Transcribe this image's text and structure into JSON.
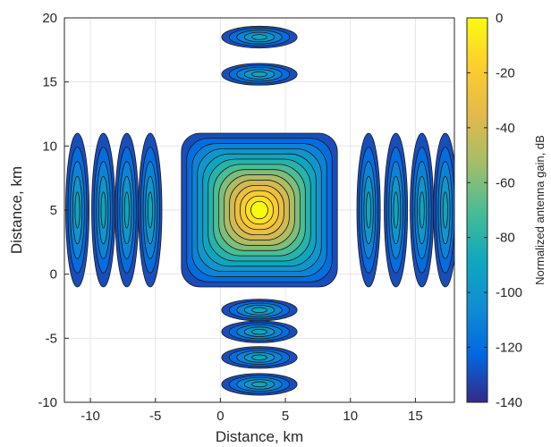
{
  "chart_data": {
    "type": "contour",
    "title": "",
    "xlabel": "Distance, km",
    "ylabel": "Distance, km",
    "xlim": [
      -12,
      18
    ],
    "ylim": [
      -10,
      20
    ],
    "xticks": [
      -10,
      -5,
      0,
      5,
      10,
      15
    ],
    "yticks": [
      -10,
      -5,
      0,
      5,
      10,
      15,
      20
    ],
    "grid": true,
    "colorbar": {
      "label": "Normalized antenna gain, dB",
      "limits": [
        -140,
        0
      ],
      "ticks": [
        0,
        -20,
        -40,
        -60,
        -80,
        -100,
        -120,
        -140
      ],
      "colormap": "parula",
      "colormap_stops": [
        "#352a87",
        "#0268e1",
        "#108ed2",
        "#0fa9bc",
        "#4cbc94",
        "#a5be68",
        "#e4b94a",
        "#fcce2e",
        "#f9fb0e"
      ]
    },
    "contour_levels_db": [
      -140,
      -130,
      -120,
      -110,
      -100,
      -90,
      -80,
      -70,
      -60,
      -50,
      -40,
      -30,
      -20,
      -10
    ],
    "beam_center": {
      "x": 3,
      "y": 5
    },
    "main_lobe": {
      "x_range": [
        -3,
        9
      ],
      "y_range": [
        -1,
        11
      ],
      "peak_db": 0
    },
    "side_lobes": [
      {
        "axis": "x",
        "centers": [
          -11,
          -9,
          -7.2,
          -5.4
        ],
        "y_center": 5
      },
      {
        "axis": "x",
        "centers": [
          11.4,
          13.5,
          15.5,
          17.3
        ],
        "y_center": 5
      },
      {
        "axis": "y",
        "centers": [
          18.5,
          15.6
        ],
        "x_center": 3
      },
      {
        "axis": "y",
        "centers": [
          -2.8,
          -4.5,
          -6.5,
          -8.6
        ],
        "x_center": 3
      }
    ]
  }
}
